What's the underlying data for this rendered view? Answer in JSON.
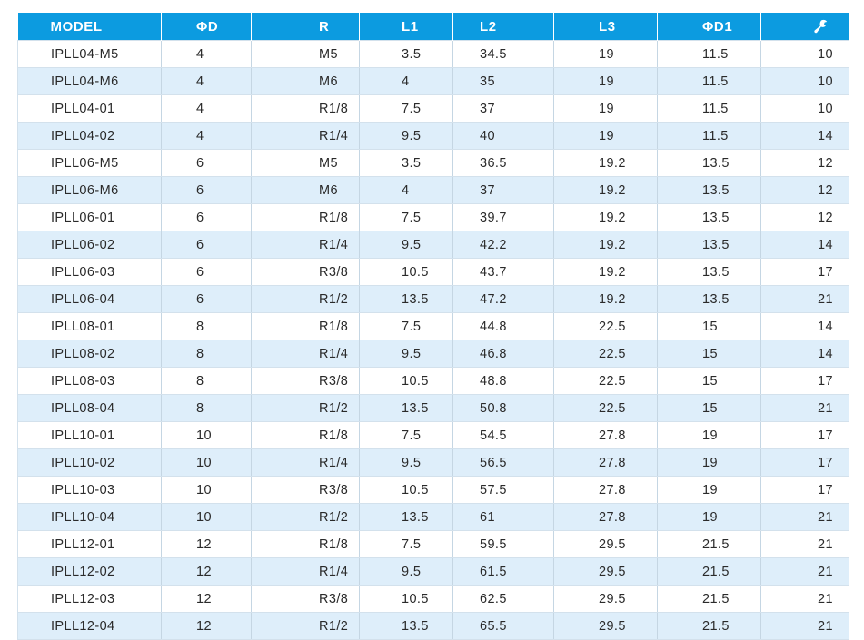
{
  "table": {
    "headers": [
      "MODEL",
      "ΦD",
      "R",
      "L1",
      "L2",
      "L3",
      "ΦD1",
      ""
    ],
    "header_icon_last": "wrench-icon",
    "header_color": "#0c9be0",
    "stripe_color": "#deeefa",
    "rows": [
      [
        "IPLL04-M5",
        "4",
        "M5",
        "3.5",
        "34.5",
        "19",
        "11.5",
        "10"
      ],
      [
        "IPLL04-M6",
        "4",
        "M6",
        "4",
        "35",
        "19",
        "11.5",
        "10"
      ],
      [
        "IPLL04-01",
        "4",
        "R1/8",
        "7.5",
        "37",
        "19",
        "11.5",
        "10"
      ],
      [
        "IPLL04-02",
        "4",
        "R1/4",
        "9.5",
        "40",
        "19",
        "11.5",
        "14"
      ],
      [
        "IPLL06-M5",
        "6",
        "M5",
        "3.5",
        "36.5",
        "19.2",
        "13.5",
        "12"
      ],
      [
        "IPLL06-M6",
        "6",
        "M6",
        "4",
        "37",
        "19.2",
        "13.5",
        "12"
      ],
      [
        "IPLL06-01",
        "6",
        "R1/8",
        "7.5",
        "39.7",
        "19.2",
        "13.5",
        "12"
      ],
      [
        "IPLL06-02",
        "6",
        "R1/4",
        "9.5",
        "42.2",
        "19.2",
        "13.5",
        "14"
      ],
      [
        "IPLL06-03",
        "6",
        "R3/8",
        "10.5",
        "43.7",
        "19.2",
        "13.5",
        "17"
      ],
      [
        "IPLL06-04",
        "6",
        "R1/2",
        "13.5",
        "47.2",
        "19.2",
        "13.5",
        "21"
      ],
      [
        "IPLL08-01",
        "8",
        "R1/8",
        "7.5",
        "44.8",
        "22.5",
        "15",
        "14"
      ],
      [
        "IPLL08-02",
        "8",
        "R1/4",
        "9.5",
        "46.8",
        "22.5",
        "15",
        "14"
      ],
      [
        "IPLL08-03",
        "8",
        "R3/8",
        "10.5",
        "48.8",
        "22.5",
        "15",
        "17"
      ],
      [
        "IPLL08-04",
        "8",
        "R1/2",
        "13.5",
        "50.8",
        "22.5",
        "15",
        "21"
      ],
      [
        "IPLL10-01",
        "10",
        "R1/8",
        "7.5",
        "54.5",
        "27.8",
        "19",
        "17"
      ],
      [
        "IPLL10-02",
        "10",
        "R1/4",
        "9.5",
        "56.5",
        "27.8",
        "19",
        "17"
      ],
      [
        "IPLL10-03",
        "10",
        "R3/8",
        "10.5",
        "57.5",
        "27.8",
        "19",
        "17"
      ],
      [
        "IPLL10-04",
        "10",
        "R1/2",
        "13.5",
        "61",
        "27.8",
        "19",
        "21"
      ],
      [
        "IPLL12-01",
        "12",
        "R1/8",
        "7.5",
        "59.5",
        "29.5",
        "21.5",
        "21"
      ],
      [
        "IPLL12-02",
        "12",
        "R1/4",
        "9.5",
        "61.5",
        "29.5",
        "21.5",
        "21"
      ],
      [
        "IPLL12-03",
        "12",
        "R3/8",
        "10.5",
        "62.5",
        "29.5",
        "21.5",
        "21"
      ],
      [
        "IPLL12-04",
        "12",
        "R1/2",
        "13.5",
        "65.5",
        "29.5",
        "21.5",
        "21"
      ]
    ]
  }
}
